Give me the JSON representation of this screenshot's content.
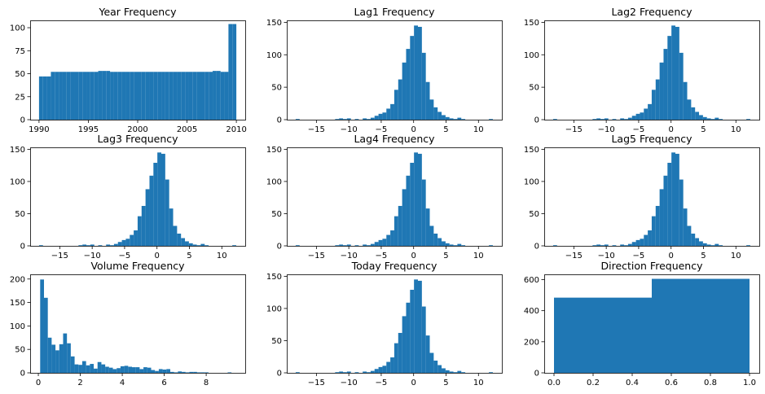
{
  "bar_color": "#1f77b4",
  "chart_data": [
    {
      "type": "bar",
      "title": "Year Frequency",
      "xlim": [
        1989.1,
        2010.9
      ],
      "ylim": [
        0,
        108
      ],
      "xticks": [
        1990,
        1995,
        2000,
        2005,
        2010
      ],
      "xtick_labels": [
        "1990",
        "1995",
        "2000",
        "2005",
        "2010"
      ],
      "yticks": [
        0,
        25,
        50,
        75,
        100
      ],
      "ytick_labels": [
        "0",
        "25",
        "50",
        "75",
        "100"
      ],
      "bin_edges": [
        1990,
        1990.4,
        1990.8,
        1991.2,
        1991.6,
        1992,
        1992.4,
        1992.8,
        1993.2,
        1993.6,
        1994,
        1994.4,
        1994.8,
        1995.2,
        1995.6,
        1996,
        1996.4,
        1996.8,
        1997.2,
        1997.6,
        1998,
        1998.4,
        1998.8,
        1999.2,
        1999.6,
        2000,
        2000.4,
        2000.8,
        2001.2,
        2001.6,
        2002,
        2002.4,
        2002.8,
        2003.2,
        2003.6,
        2004,
        2004.4,
        2004.8,
        2005.2,
        2005.6,
        2006,
        2006.4,
        2006.8,
        2007.2,
        2007.6,
        2008,
        2008.4,
        2008.8,
        2009.2,
        2009.6,
        2010
      ],
      "counts": [
        47,
        47,
        47,
        52,
        52,
        52,
        52,
        52,
        52,
        52,
        52,
        52,
        52,
        52,
        52,
        53,
        53,
        53,
        52,
        52,
        52,
        52,
        52,
        52,
        52,
        52,
        52,
        52,
        52,
        52,
        52,
        52,
        52,
        52,
        52,
        52,
        52,
        52,
        52,
        52,
        52,
        52,
        52,
        52,
        53,
        53,
        52,
        52,
        104,
        104
      ]
    },
    {
      "type": "bar",
      "title": "Lag1 Frequency",
      "xlim": [
        -19.57,
        13.61
      ],
      "ylim": [
        0,
        153
      ],
      "xticks": [
        -15,
        -10,
        -5,
        0,
        5,
        10
      ],
      "xtick_labels": [
        "−15",
        "−10",
        "−5",
        "0",
        "5",
        "10"
      ],
      "yticks": [
        0,
        50,
        100,
        150
      ],
      "ytick_labels": [
        "0",
        "50",
        "100",
        "150"
      ],
      "bin_edges": [
        -18.195,
        -17.587,
        -16.978,
        -16.37,
        -15.762,
        -15.153,
        -14.545,
        -13.937,
        -13.328,
        -12.72,
        -12.112,
        -11.503,
        -10.895,
        -10.287,
        -9.678,
        -9.07,
        -8.462,
        -7.853,
        -7.245,
        -6.637,
        -6.028,
        -5.42,
        -4.812,
        -4.203,
        -3.595,
        -2.987,
        -2.378,
        -1.77,
        -1.162,
        -0.553,
        0.055,
        0.663,
        1.272,
        1.88,
        2.488,
        3.097,
        3.705,
        4.313,
        4.922,
        5.53,
        6.138,
        6.747,
        7.355,
        7.963,
        8.572,
        9.18,
        9.788,
        10.397,
        11.005,
        11.613,
        12.222
      ],
      "counts": [
        1,
        0,
        0,
        0,
        0,
        0,
        0,
        0,
        0,
        0,
        1,
        2,
        1,
        2,
        0,
        1,
        0,
        2,
        1,
        3,
        6,
        9,
        11,
        17,
        24,
        46,
        62,
        88,
        109,
        129,
        145,
        143,
        103,
        58,
        31,
        19,
        12,
        7,
        4,
        2,
        1,
        3,
        1,
        0,
        0,
        0,
        0,
        0,
        0,
        1
      ]
    },
    {
      "type": "bar",
      "title": "Lag2 Frequency",
      "xlim": [
        -19.57,
        13.61
      ],
      "ylim": [
        0,
        153
      ],
      "xticks": [
        -15,
        -10,
        -5,
        0,
        5,
        10
      ],
      "xtick_labels": [
        "−15",
        "−10",
        "−5",
        "0",
        "5",
        "10"
      ],
      "yticks": [
        0,
        50,
        100,
        150
      ],
      "ytick_labels": [
        "0",
        "50",
        "100",
        "150"
      ],
      "bin_edges": [
        -18.195,
        -17.587,
        -16.978,
        -16.37,
        -15.762,
        -15.153,
        -14.545,
        -13.937,
        -13.328,
        -12.72,
        -12.112,
        -11.503,
        -10.895,
        -10.287,
        -9.678,
        -9.07,
        -8.462,
        -7.853,
        -7.245,
        -6.637,
        -6.028,
        -5.42,
        -4.812,
        -4.203,
        -3.595,
        -2.987,
        -2.378,
        -1.77,
        -1.162,
        -0.553,
        0.055,
        0.663,
        1.272,
        1.88,
        2.488,
        3.097,
        3.705,
        4.313,
        4.922,
        5.53,
        6.138,
        6.747,
        7.355,
        7.963,
        8.572,
        9.18,
        9.788,
        10.397,
        11.005,
        11.613,
        12.222
      ],
      "counts": [
        1,
        0,
        0,
        0,
        0,
        0,
        0,
        0,
        0,
        0,
        1,
        2,
        1,
        2,
        0,
        1,
        0,
        2,
        1,
        3,
        6,
        9,
        11,
        17,
        24,
        46,
        62,
        88,
        109,
        129,
        145,
        143,
        103,
        58,
        31,
        19,
        12,
        7,
        4,
        2,
        1,
        3,
        1,
        0,
        0,
        0,
        0,
        0,
        0,
        1
      ]
    },
    {
      "type": "bar",
      "title": "Lag3 Frequency",
      "xlim": [
        -19.57,
        13.61
      ],
      "ylim": [
        0,
        153
      ],
      "xticks": [
        -15,
        -10,
        -5,
        0,
        5,
        10
      ],
      "xtick_labels": [
        "−15",
        "−10",
        "−5",
        "0",
        "5",
        "10"
      ],
      "yticks": [
        0,
        50,
        100,
        150
      ],
      "ytick_labels": [
        "0",
        "50",
        "100",
        "150"
      ],
      "bin_edges": [
        -18.195,
        -17.587,
        -16.978,
        -16.37,
        -15.762,
        -15.153,
        -14.545,
        -13.937,
        -13.328,
        -12.72,
        -12.112,
        -11.503,
        -10.895,
        -10.287,
        -9.678,
        -9.07,
        -8.462,
        -7.853,
        -7.245,
        -6.637,
        -6.028,
        -5.42,
        -4.812,
        -4.203,
        -3.595,
        -2.987,
        -2.378,
        -1.77,
        -1.162,
        -0.553,
        0.055,
        0.663,
        1.272,
        1.88,
        2.488,
        3.097,
        3.705,
        4.313,
        4.922,
        5.53,
        6.138,
        6.747,
        7.355,
        7.963,
        8.572,
        9.18,
        9.788,
        10.397,
        11.005,
        11.613,
        12.222
      ],
      "counts": [
        1,
        0,
        0,
        0,
        0,
        0,
        0,
        0,
        0,
        0,
        1,
        2,
        1,
        2,
        0,
        1,
        0,
        2,
        1,
        3,
        6,
        9,
        11,
        17,
        24,
        46,
        62,
        88,
        109,
        129,
        145,
        143,
        103,
        58,
        31,
        19,
        12,
        7,
        4,
        2,
        1,
        3,
        1,
        0,
        0,
        0,
        0,
        0,
        0,
        1
      ]
    },
    {
      "type": "bar",
      "title": "Lag4 Frequency",
      "xlim": [
        -19.57,
        13.61
      ],
      "ylim": [
        0,
        153
      ],
      "xticks": [
        -15,
        -10,
        -5,
        0,
        5,
        10
      ],
      "xtick_labels": [
        "−15",
        "−10",
        "−5",
        "0",
        "5",
        "10"
      ],
      "yticks": [
        0,
        50,
        100,
        150
      ],
      "ytick_labels": [
        "0",
        "50",
        "100",
        "150"
      ],
      "bin_edges": [
        -18.195,
        -17.587,
        -16.978,
        -16.37,
        -15.762,
        -15.153,
        -14.545,
        -13.937,
        -13.328,
        -12.72,
        -12.112,
        -11.503,
        -10.895,
        -10.287,
        -9.678,
        -9.07,
        -8.462,
        -7.853,
        -7.245,
        -6.637,
        -6.028,
        -5.42,
        -4.812,
        -4.203,
        -3.595,
        -2.987,
        -2.378,
        -1.77,
        -1.162,
        -0.553,
        0.055,
        0.663,
        1.272,
        1.88,
        2.488,
        3.097,
        3.705,
        4.313,
        4.922,
        5.53,
        6.138,
        6.747,
        7.355,
        7.963,
        8.572,
        9.18,
        9.788,
        10.397,
        11.005,
        11.613,
        12.222
      ],
      "counts": [
        1,
        0,
        0,
        0,
        0,
        0,
        0,
        0,
        0,
        0,
        1,
        2,
        1,
        2,
        0,
        1,
        0,
        2,
        1,
        3,
        6,
        9,
        11,
        17,
        24,
        46,
        62,
        88,
        109,
        129,
        145,
        143,
        103,
        58,
        31,
        19,
        12,
        7,
        4,
        2,
        1,
        3,
        1,
        0,
        0,
        0,
        0,
        0,
        0,
        1
      ]
    },
    {
      "type": "bar",
      "title": "Lag5 Frequency",
      "xlim": [
        -19.57,
        13.61
      ],
      "ylim": [
        0,
        153
      ],
      "xticks": [
        -15,
        -10,
        -5,
        0,
        5,
        10
      ],
      "xtick_labels": [
        "−15",
        "−10",
        "−5",
        "0",
        "5",
        "10"
      ],
      "yticks": [
        0,
        50,
        100,
        150
      ],
      "ytick_labels": [
        "0",
        "50",
        "100",
        "150"
      ],
      "bin_edges": [
        -18.195,
        -17.587,
        -16.978,
        -16.37,
        -15.762,
        -15.153,
        -14.545,
        -13.937,
        -13.328,
        -12.72,
        -12.112,
        -11.503,
        -10.895,
        -10.287,
        -9.678,
        -9.07,
        -8.462,
        -7.853,
        -7.245,
        -6.637,
        -6.028,
        -5.42,
        -4.812,
        -4.203,
        -3.595,
        -2.987,
        -2.378,
        -1.77,
        -1.162,
        -0.553,
        0.055,
        0.663,
        1.272,
        1.88,
        2.488,
        3.097,
        3.705,
        4.313,
        4.922,
        5.53,
        6.138,
        6.747,
        7.355,
        7.963,
        8.572,
        9.18,
        9.788,
        10.397,
        11.005,
        11.613,
        12.222
      ],
      "counts": [
        1,
        0,
        0,
        0,
        0,
        0,
        0,
        0,
        0,
        0,
        1,
        2,
        1,
        2,
        0,
        1,
        0,
        2,
        1,
        3,
        6,
        9,
        11,
        17,
        24,
        46,
        62,
        88,
        109,
        129,
        145,
        143,
        103,
        58,
        31,
        19,
        12,
        7,
        4,
        2,
        1,
        3,
        1,
        0,
        0,
        0,
        0,
        0,
        0,
        1
      ]
    },
    {
      "type": "bar",
      "title": "Volume Frequency",
      "xlim": [
        -0.39,
        9.86
      ],
      "ylim": [
        0,
        210
      ],
      "xticks": [
        0,
        2,
        4,
        6,
        8
      ],
      "xtick_labels": [
        "0",
        "2",
        "4",
        "6",
        "8"
      ],
      "yticks": [
        0,
        50,
        100,
        150,
        200
      ],
      "ytick_labels": [
        "0",
        "50",
        "100",
        "150",
        "200"
      ],
      "bin_edges": [
        0.0873,
        0.2696,
        0.452,
        0.6343,
        0.8167,
        0.999,
        1.1814,
        1.3637,
        1.5461,
        1.7284,
        1.9108,
        2.0931,
        2.2755,
        2.4578,
        2.6402,
        2.8225,
        3.0049,
        3.1872,
        3.3696,
        3.5519,
        3.7343,
        3.9166,
        4.099,
        4.2813,
        4.4637,
        4.646,
        4.8284,
        5.0107,
        5.1931,
        5.3754,
        5.5578,
        5.7401,
        5.9225,
        6.1048,
        6.2872,
        6.4695,
        6.6519,
        6.8342,
        7.0166,
        7.1989,
        7.3813,
        7.5636,
        7.746,
        7.9283,
        8.1107,
        8.293,
        8.4754,
        8.6577,
        8.8401,
        9.0224,
        9.2047
      ],
      "counts": [
        199,
        160,
        75,
        60,
        48,
        61,
        84,
        63,
        35,
        18,
        17,
        25,
        16,
        19,
        9,
        23,
        18,
        13,
        11,
        8,
        10,
        14,
        15,
        13,
        12,
        12,
        8,
        12,
        11,
        6,
        4,
        8,
        7,
        8,
        2,
        1,
        3,
        2,
        1,
        2,
        2,
        1,
        1,
        1,
        0,
        0,
        0,
        0,
        0,
        1
      ]
    },
    {
      "type": "bar",
      "title": "Today Frequency",
      "xlim": [
        -19.57,
        13.61
      ],
      "ylim": [
        0,
        153
      ],
      "xticks": [
        -15,
        -10,
        -5,
        0,
        5,
        10
      ],
      "xtick_labels": [
        "−15",
        "−10",
        "−5",
        "0",
        "5",
        "10"
      ],
      "yticks": [
        0,
        50,
        100,
        150
      ],
      "ytick_labels": [
        "0",
        "50",
        "100",
        "150"
      ],
      "bin_edges": [
        -18.195,
        -17.587,
        -16.978,
        -16.37,
        -15.762,
        -15.153,
        -14.545,
        -13.937,
        -13.328,
        -12.72,
        -12.112,
        -11.503,
        -10.895,
        -10.287,
        -9.678,
        -9.07,
        -8.462,
        -7.853,
        -7.245,
        -6.637,
        -6.028,
        -5.42,
        -4.812,
        -4.203,
        -3.595,
        -2.987,
        -2.378,
        -1.77,
        -1.162,
        -0.553,
        0.055,
        0.663,
        1.272,
        1.88,
        2.488,
        3.097,
        3.705,
        4.313,
        4.922,
        5.53,
        6.138,
        6.747,
        7.355,
        7.963,
        8.572,
        9.18,
        9.788,
        10.397,
        11.005,
        11.613,
        12.222
      ],
      "counts": [
        1,
        0,
        0,
        0,
        0,
        0,
        0,
        0,
        0,
        0,
        1,
        2,
        1,
        2,
        0,
        1,
        0,
        2,
        1,
        3,
        6,
        9,
        11,
        17,
        24,
        46,
        62,
        88,
        109,
        129,
        145,
        143,
        103,
        58,
        31,
        19,
        12,
        7,
        4,
        2,
        1,
        3,
        1,
        0,
        0,
        0,
        0,
        0,
        0,
        1
      ]
    },
    {
      "type": "bar",
      "title": "Direction Frequency",
      "xlim": [
        -0.05,
        1.05
      ],
      "ylim": [
        0,
        634
      ],
      "xticks": [
        0.0,
        0.2,
        0.4,
        0.6,
        0.8,
        1.0
      ],
      "xtick_labels": [
        "0.0",
        "0.2",
        "0.4",
        "0.6",
        "0.8",
        "1.0"
      ],
      "yticks": [
        0,
        200,
        400,
        600
      ],
      "ytick_labels": [
        "0",
        "200",
        "400",
        "600"
      ],
      "bin_edges": [
        0,
        0.5,
        1.0
      ],
      "counts": [
        484,
        605
      ]
    }
  ]
}
